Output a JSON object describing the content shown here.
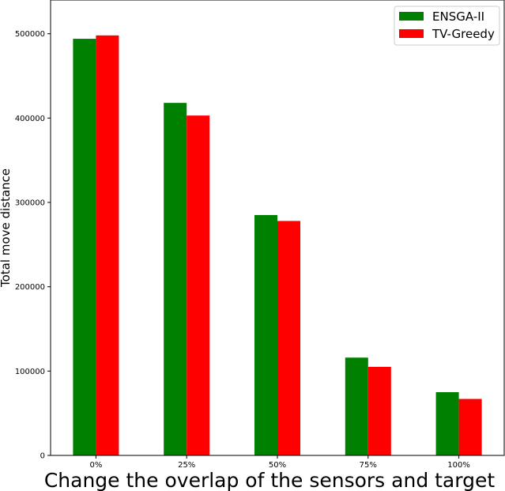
{
  "chart_data": {
    "type": "bar",
    "categories": [
      "0%",
      "25%",
      "50%",
      "75%",
      "100%"
    ],
    "series": [
      {
        "name": "ENSGA-II",
        "color": "#008000",
        "values": [
          494000,
          418000,
          285000,
          116000,
          75000
        ]
      },
      {
        "name": "TV-Greedy",
        "color": "#ff0000",
        "values": [
          498000,
          403000,
          278000,
          105000,
          67000
        ]
      }
    ],
    "xlabel": "Change the overlap of the sensors and target",
    "ylabel": "Total move distance",
    "ylim": [
      0,
      540000
    ],
    "yticks": [
      0,
      100000,
      200000,
      300000,
      400000,
      500000
    ],
    "ytick_labels": [
      "0",
      "100000",
      "200000",
      "300000",
      "400000",
      "500000"
    ],
    "grid": false,
    "legend_position": "top-right"
  }
}
